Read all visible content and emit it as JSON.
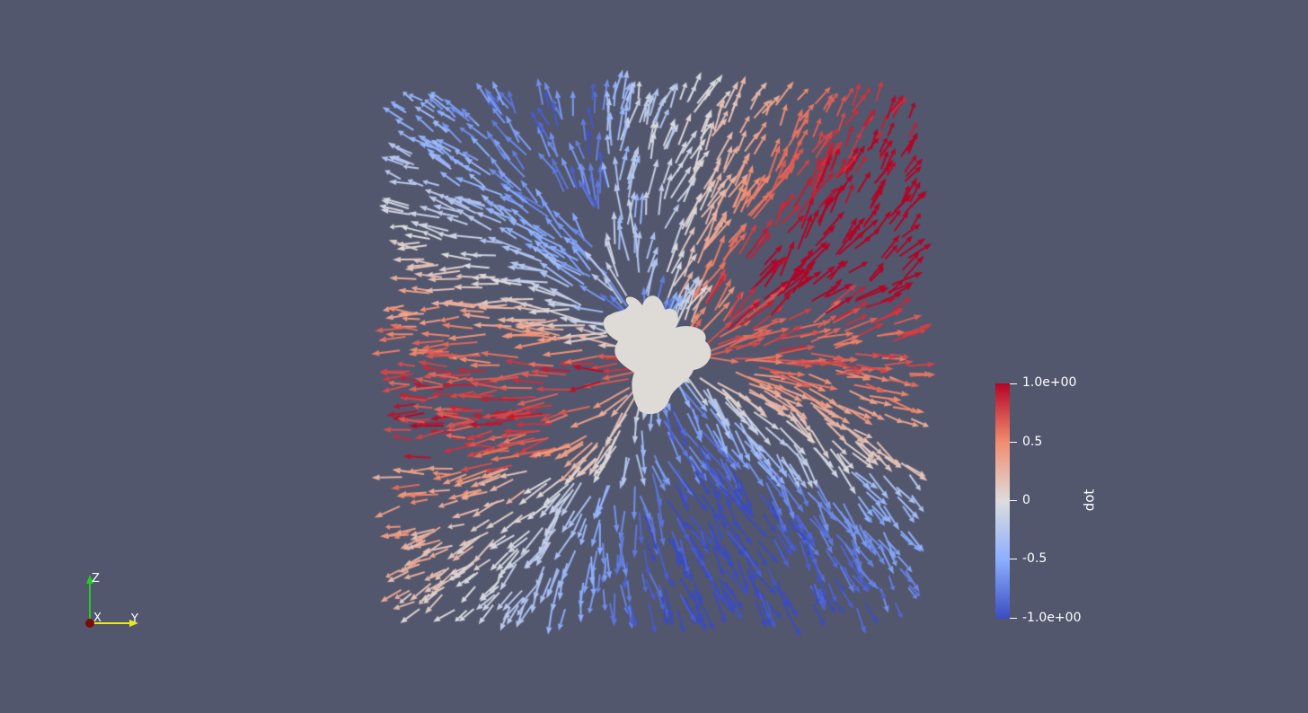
{
  "scene": {
    "background_color": "#52576e",
    "glyph_type": "arrow",
    "surface_color": "#dedbd6"
  },
  "colorbar": {
    "title": "dot",
    "tick_labels": [
      "1.0e+00",
      "0.5",
      "0",
      "-0.5",
      "-1.0e+00"
    ],
    "range": [
      -1.0,
      1.0
    ],
    "colormap": [
      "#3b4cc0",
      "#8caffe",
      "#dddcdc",
      "#f18d6f",
      "#b40426"
    ]
  },
  "orientation_axes": {
    "z_label": "Z",
    "x_label": "X",
    "y_label": "Y",
    "z_color": "#22cc22",
    "y_color": "#e8e81a",
    "x_color": "#a01010"
  }
}
